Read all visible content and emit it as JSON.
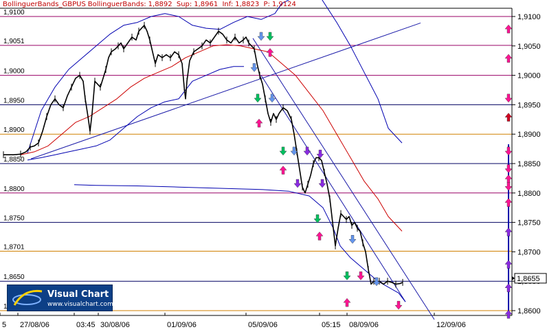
{
  "header": {
    "indicator": "BollinguerBands_GBPUS",
    "title": "BollinguerBands:",
    "value": "1,8892",
    "sup_label": "Sup:",
    "sup_value": "1,8961",
    "inf_label": "Inf:",
    "inf_value": "1,8823",
    "p_label": "P:",
    "p_value": "1,9124"
  },
  "logo": {
    "name": "Visual Chart",
    "url": "www.visualchart.com"
  },
  "colors": {
    "price": "#000000",
    "band": "#0000b0",
    "ma": "#cc0000",
    "trendline": "#1a1aa8",
    "grid_dark": "#000060",
    "grid_magenta": "#990066",
    "grid_orange": "#d08000",
    "arrow_up": "#ff1493",
    "arrow_down_blue": "#6495ed",
    "arrow_green": "#00c060",
    "arrow_purple": "#8a2be2"
  },
  "chart_data": {
    "type": "line",
    "instrument": "GBPUSD",
    "price_tag": "1,8655",
    "ylim": [
      1.858,
      1.912
    ],
    "y_ticks": [
      "1,9100",
      "1,9051",
      "1,9000",
      "1,8950",
      "1,8900",
      "1,8850",
      "1,8800",
      "1,8750",
      "1,8701",
      "1,8650",
      "1,8600"
    ],
    "y_tick_values": [
      1.91,
      1.9051,
      1.9,
      1.895,
      1.89,
      1.885,
      1.88,
      1.875,
      1.8701,
      1.865,
      1.86
    ],
    "right_ticks": [
      "1,9100",
      "1,9050",
      "1,9000",
      "1,8950",
      "1,8900",
      "1,8850",
      "1,8800",
      "1,8750",
      "1,8700",
      "1,8650",
      "1,8600"
    ],
    "right_tick_values": [
      1.91,
      1.905,
      1.9,
      1.895,
      1.89,
      1.885,
      1.88,
      1.875,
      1.87,
      1.865,
      1.86
    ],
    "x_ticks": [
      "5",
      "27/08/06",
      "03:45",
      "30/08/06",
      "01/09/06",
      "05/09/06",
      "05:15",
      "08/09/06",
      "12/09/06"
    ],
    "x_tick_pos": [
      0,
      26,
      108,
      143,
      240,
      358,
      465,
      505,
      632
    ],
    "xlim": [
      0,
      745
    ],
    "grid": {
      "dark": [
        1.895,
        1.885,
        1.875,
        1.865
      ],
      "magenta": [
        1.91,
        1.9051,
        1.9,
        1.88
      ],
      "orange": [
        1.89,
        1.8701,
        1.86
      ]
    },
    "series": [
      {
        "name": "GBPUSD",
        "role": "price",
        "points": [
          [
            5,
            1.8865
          ],
          [
            20,
            1.8865
          ],
          [
            30,
            1.8866
          ],
          [
            38,
            1.887
          ],
          [
            44,
            1.8878
          ],
          [
            50,
            1.888
          ],
          [
            56,
            1.8885
          ],
          [
            62,
            1.8905
          ],
          [
            68,
            1.893
          ],
          [
            74,
            1.895
          ],
          [
            80,
            1.896
          ],
          [
            86,
            1.895
          ],
          [
            92,
            1.8945
          ],
          [
            98,
            1.8965
          ],
          [
            104,
            1.898
          ],
          [
            110,
            1.8995
          ],
          [
            116,
            1.9
          ],
          [
            121,
            1.899
          ],
          [
            124,
            1.896
          ],
          [
            128,
            1.893
          ],
          [
            131,
            1.8905
          ],
          [
            134,
            1.8935
          ],
          [
            138,
            1.899
          ],
          [
            142,
            1.8985
          ],
          [
            146,
            1.898
          ],
          [
            150,
            1.8995
          ],
          [
            154,
            1.901
          ],
          [
            158,
            1.903
          ],
          [
            162,
            1.904
          ],
          [
            168,
            1.9045
          ],
          [
            172,
            1.905
          ],
          [
            176,
            1.9055
          ],
          [
            180,
            1.9045
          ],
          [
            186,
            1.9055
          ],
          [
            192,
            1.9065
          ],
          [
            198,
            1.906
          ],
          [
            202,
            1.9075
          ],
          [
            206,
            1.908
          ],
          [
            210,
            1.9085
          ],
          [
            214,
            1.9075
          ],
          [
            218,
            1.906
          ],
          [
            222,
            1.904
          ],
          [
            226,
            1.902
          ],
          [
            230,
            1.9035
          ],
          [
            236,
            1.903
          ],
          [
            242,
            1.9035
          ],
          [
            248,
            1.903
          ],
          [
            254,
            1.904
          ],
          [
            260,
            1.9035
          ],
          [
            265,
            1.902
          ],
          [
            268,
            1.898
          ],
          [
            270,
            1.896
          ],
          [
            272,
            1.899
          ],
          [
            276,
            1.9025
          ],
          [
            282,
            1.904
          ],
          [
            288,
            1.9045
          ],
          [
            294,
            1.905
          ],
          [
            300,
            1.906
          ],
          [
            306,
            1.9055
          ],
          [
            312,
            1.9065
          ],
          [
            318,
            1.9075
          ],
          [
            324,
            1.907
          ],
          [
            330,
            1.906
          ],
          [
            336,
            1.9055
          ],
          [
            342,
            1.9065
          ],
          [
            348,
            1.9055
          ],
          [
            354,
            1.906
          ],
          [
            358,
            1.9065
          ],
          [
            362,
            1.9055
          ],
          [
            366,
            1.905
          ],
          [
            370,
            1.9045
          ],
          [
            374,
            1.902
          ],
          [
            378,
            1.9
          ],
          [
            382,
            1.8985
          ],
          [
            386,
            1.896
          ],
          [
            390,
            1.8935
          ],
          [
            394,
            1.892
          ],
          [
            398,
            1.8935
          ],
          [
            402,
            1.8925
          ],
          [
            406,
            1.8935
          ],
          [
            412,
            1.8945
          ],
          [
            418,
            1.894
          ],
          [
            424,
            1.8925
          ],
          [
            428,
            1.89
          ],
          [
            432,
            1.887
          ],
          [
            436,
            1.884
          ],
          [
            440,
            1.881
          ],
          [
            444,
            1.88
          ],
          [
            448,
            1.8815
          ],
          [
            452,
            1.883
          ],
          [
            456,
            1.885
          ],
          [
            460,
            1.886
          ],
          [
            464,
            1.886
          ],
          [
            468,
            1.8855
          ],
          [
            472,
            1.8835
          ],
          [
            476,
            1.8815
          ],
          [
            480,
            1.879
          ],
          [
            484,
            1.875
          ],
          [
            488,
            1.871
          ],
          [
            492,
            1.874
          ],
          [
            496,
            1.8765
          ],
          [
            500,
            1.876
          ],
          [
            504,
            1.8755
          ],
          [
            508,
            1.876
          ],
          [
            512,
            1.8745
          ],
          [
            516,
            1.875
          ],
          [
            520,
            1.874
          ],
          [
            524,
            1.8735
          ],
          [
            528,
            1.8715
          ],
          [
            532,
            1.87
          ],
          [
            536,
            1.867
          ],
          [
            540,
            1.8645
          ],
          [
            544,
            1.865
          ],
          [
            548,
            1.8645
          ],
          [
            552,
            1.865
          ],
          [
            558,
            1.8645
          ],
          [
            564,
            1.865
          ],
          [
            570,
            1.8648
          ],
          [
            576,
            1.8645
          ],
          [
            582,
            1.8646
          ],
          [
            586,
            1.8648
          ]
        ]
      },
      {
        "name": "Upper band",
        "role": "upper",
        "points": [
          [
            40,
            1.8868
          ],
          [
            60,
            1.894
          ],
          [
            80,
            1.898
          ],
          [
            100,
            1.901
          ],
          [
            120,
            1.903
          ],
          [
            140,
            1.905
          ],
          [
            160,
            1.907
          ],
          [
            180,
            1.9085
          ],
          [
            200,
            1.909
          ],
          [
            220,
            1.91
          ],
          [
            240,
            1.9105
          ],
          [
            260,
            1.91
          ],
          [
            280,
            1.9085
          ],
          [
            300,
            1.908
          ],
          [
            320,
            1.9078
          ],
          [
            340,
            1.909
          ],
          [
            360,
            1.91
          ],
          [
            380,
            1.9095
          ],
          [
            400,
            1.9105
          ],
          [
            410,
            1.9122
          ],
          [
            440,
            1.914
          ],
          [
            465,
            1.9135
          ],
          [
            490,
            1.909
          ],
          [
            510,
            1.905
          ],
          [
            530,
            1.9005
          ],
          [
            550,
            1.896
          ],
          [
            565,
            1.891
          ],
          [
            585,
            1.8885
          ]
        ]
      },
      {
        "name": "Lower band",
        "role": "lower",
        "points": [
          [
            40,
            1.8856
          ],
          [
            60,
            1.886
          ],
          [
            80,
            1.8865
          ],
          [
            100,
            1.887
          ],
          [
            120,
            1.8875
          ],
          [
            140,
            1.888
          ],
          [
            160,
            1.889
          ],
          [
            180,
            1.891
          ],
          [
            200,
            1.893
          ],
          [
            220,
            1.8945
          ],
          [
            240,
            1.8955
          ],
          [
            260,
            1.896
          ],
          [
            280,
            1.899
          ],
          [
            300,
            1.9
          ],
          [
            320,
            1.901
          ],
          [
            340,
            1.9015
          ],
          [
            355,
            1.9015
          ]
        ]
      },
      {
        "name": "Lower band (cont.)",
        "role": "lower2",
        "points": [
          [
            108,
            1.8814
          ],
          [
            140,
            1.8813
          ],
          [
            200,
            1.8812
          ],
          [
            260,
            1.881
          ],
          [
            320,
            1.8808
          ],
          [
            380,
            1.8806
          ],
          [
            420,
            1.8803
          ],
          [
            450,
            1.8795
          ],
          [
            470,
            1.8775
          ],
          [
            485,
            1.874
          ],
          [
            495,
            1.871
          ],
          [
            510,
            1.869
          ],
          [
            530,
            1.867
          ],
          [
            550,
            1.865
          ],
          [
            565,
            1.864
          ],
          [
            580,
            1.863
          ],
          [
            590,
            1.8615
          ]
        ]
      },
      {
        "name": "Moving average",
        "role": "ma",
        "points": [
          [
            30,
            1.8865
          ],
          [
            50,
            1.887
          ],
          [
            70,
            1.888
          ],
          [
            90,
            1.89
          ],
          [
            110,
            1.892
          ],
          [
            130,
            1.893
          ],
          [
            150,
            1.8945
          ],
          [
            170,
            1.896
          ],
          [
            190,
            1.898
          ],
          [
            210,
            1.8995
          ],
          [
            230,
            1.9005
          ],
          [
            250,
            1.9015
          ],
          [
            270,
            1.903
          ],
          [
            290,
            1.904
          ],
          [
            310,
            1.905
          ],
          [
            330,
            1.9052
          ],
          [
            350,
            1.905
          ],
          [
            370,
            1.9045
          ],
          [
            390,
            1.904
          ],
          [
            410,
            1.902
          ],
          [
            430,
            1.9
          ],
          [
            450,
            1.897
          ],
          [
            470,
            1.894
          ],
          [
            490,
            1.89
          ],
          [
            510,
            1.886
          ],
          [
            530,
            1.882
          ],
          [
            550,
            1.879
          ],
          [
            565,
            1.876
          ],
          [
            585,
            1.8735
          ]
        ]
      }
    ],
    "lines": [
      {
        "name": "Support trendline",
        "from": [
          45,
          1.8858
        ],
        "to": [
          612,
          1.9089
        ]
      },
      {
        "name": "Resistance trendline",
        "from": [
          368,
          1.9063
        ],
        "to": [
          632,
          1.8585
        ]
      },
      {
        "name": "Secondary resistance line",
        "from": [
          380,
          1.9
        ],
        "to": [
          590,
          1.8615
        ]
      }
    ],
    "arrows": [
      {
        "x": 380,
        "y": 1.9065,
        "dir": "down",
        "color": "blue"
      },
      {
        "x": 393,
        "y": 1.9065,
        "dir": "down",
        "color": "green"
      },
      {
        "x": 393,
        "y": 1.904,
        "dir": "up",
        "color": "pink"
      },
      {
        "x": 370,
        "y": 1.9012,
        "dir": "down",
        "color": "blue"
      },
      {
        "x": 375,
        "y": 1.896,
        "dir": "down",
        "color": "green"
      },
      {
        "x": 377,
        "y": 1.892,
        "dir": "up",
        "color": "pink"
      },
      {
        "x": 396,
        "y": 1.896,
        "dir": "down",
        "color": "blue"
      },
      {
        "x": 412,
        "y": 1.887,
        "dir": "down",
        "color": "green"
      },
      {
        "x": 428,
        "y": 1.887,
        "dir": "down",
        "color": "blue"
      },
      {
        "x": 412,
        "y": 1.884,
        "dir": "up",
        "color": "pink"
      },
      {
        "x": 447,
        "y": 1.887,
        "dir": "down",
        "color": "purple"
      },
      {
        "x": 466,
        "y": 1.8865,
        "dir": "down",
        "color": "purple"
      },
      {
        "x": 433,
        "y": 1.8815,
        "dir": "down",
        "color": "purple"
      },
      {
        "x": 469,
        "y": 1.8815,
        "dir": "down",
        "color": "purple"
      },
      {
        "x": 462,
        "y": 1.8755,
        "dir": "down",
        "color": "green"
      },
      {
        "x": 465,
        "y": 1.8728,
        "dir": "up",
        "color": "pink"
      },
      {
        "x": 513,
        "y": 1.872,
        "dir": "down",
        "color": "blue"
      },
      {
        "x": 505,
        "y": 1.8658,
        "dir": "down",
        "color": "green"
      },
      {
        "x": 525,
        "y": 1.8658,
        "dir": "down",
        "color": "pink"
      },
      {
        "x": 505,
        "y": 1.8615,
        "dir": "up",
        "color": "pink"
      },
      {
        "x": 548,
        "y": 1.8648,
        "dir": "down",
        "color": "blue"
      },
      {
        "x": 580,
        "y": 1.8608,
        "dir": "down",
        "color": "pink"
      },
      {
        "x": 740,
        "y": 1.908,
        "dir": "up",
        "color": "pink"
      },
      {
        "x": 740,
        "y": 1.903,
        "dir": "up",
        "color": "pink"
      },
      {
        "x": 740,
        "y": 1.896,
        "dir": "down",
        "color": "pink"
      },
      {
        "x": 740,
        "y": 1.893,
        "dir": "up",
        "color": "red"
      },
      {
        "x": 740,
        "y": 1.887,
        "dir": "down",
        "color": "pink"
      },
      {
        "x": 740,
        "y": 1.884,
        "dir": "down",
        "color": "pink"
      },
      {
        "x": 740,
        "y": 1.8825,
        "dir": "up",
        "color": "pink"
      },
      {
        "x": 740,
        "y": 1.881,
        "dir": "down",
        "color": "pink"
      },
      {
        "x": 740,
        "y": 1.8785,
        "dir": "up",
        "color": "pink"
      },
      {
        "x": 740,
        "y": 1.8735,
        "dir": "up",
        "color": "purple"
      },
      {
        "x": 740,
        "y": 1.868,
        "dir": "up",
        "color": "purple"
      },
      {
        "x": 740,
        "y": 1.864,
        "dir": "up",
        "color": "purple"
      },
      {
        "x": 740,
        "y": 1.8595,
        "dir": "up",
        "color": "purple"
      }
    ]
  }
}
